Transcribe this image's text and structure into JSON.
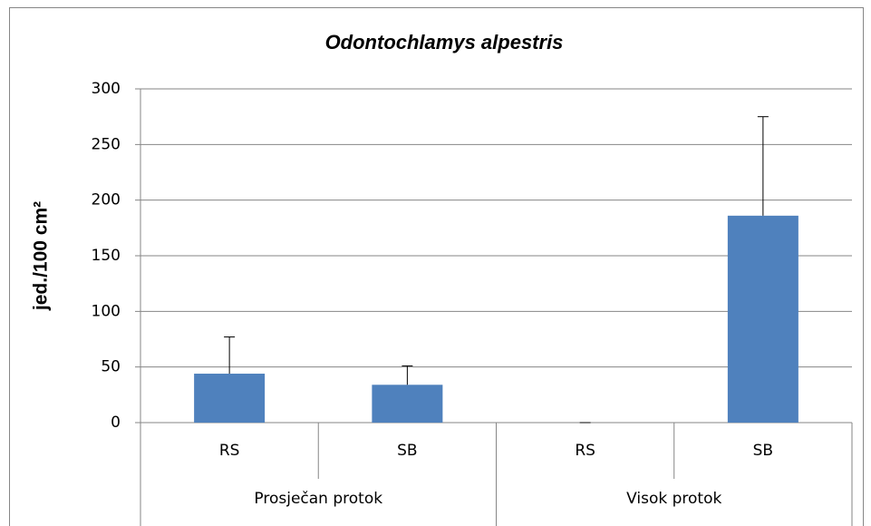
{
  "chart_data": {
    "type": "bar",
    "title": "Odontochlamys alpestris",
    "ylabel": "jed./100 cm²",
    "groups": [
      {
        "name": "Prosječan protok",
        "categories": [
          "RS",
          "SB"
        ]
      },
      {
        "name": "Visok protok",
        "categories": [
          "RS",
          "SB"
        ]
      }
    ],
    "values": [
      44,
      34,
      0,
      186
    ],
    "errors": [
      33,
      17,
      0,
      89
    ],
    "color": "#4f81bd",
    "ylim": [
      0,
      300
    ],
    "yticks": [
      0,
      50,
      100,
      150,
      200,
      250,
      300
    ],
    "grid": true
  }
}
